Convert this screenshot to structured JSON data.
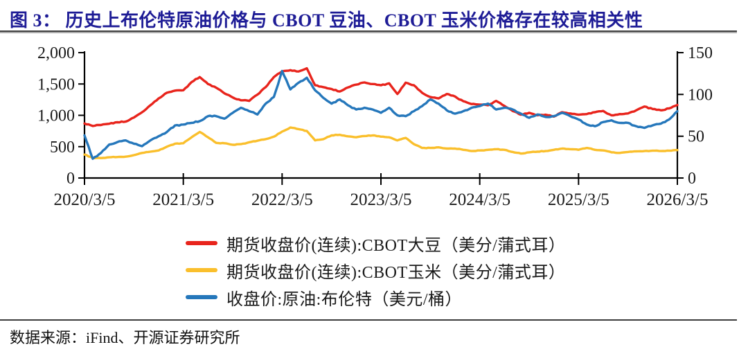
{
  "header": {
    "title": "图 3：  历史上布伦特原油价格与 CBOT 豆油、CBOT 玉米价格存在较高相关性"
  },
  "source": {
    "text": "数据来源：iFind、开源证券研究所"
  },
  "colors": {
    "title_navy": "#1E1C96",
    "soybean_red": "#E8241C",
    "corn_yellow": "#FABF2C",
    "brent_blue": "#2577BB",
    "axis_black": "#000000"
  },
  "chart_data": {
    "type": "line",
    "title": "",
    "grid": false,
    "legend_position": "bottom",
    "x_unit": "monthly observations from 2020/3 to 2026/3",
    "x_tick_labels": [
      "2020/3/5",
      "2021/3/5",
      "2022/3/5",
      "2023/3/5",
      "2024/3/5",
      "2025/3/5",
      "2026/3/5"
    ],
    "left_axis": {
      "ticks": [
        "2,000",
        "1,500",
        "1,000",
        "500",
        "0"
      ],
      "range": [
        0,
        2000
      ]
    },
    "right_axis": {
      "ticks": [
        "150",
        "100",
        "50",
        "0"
      ],
      "range": [
        0,
        150
      ]
    },
    "series": [
      {
        "name": "期货收盘价(连续):CBOT大豆（美分/蒲式耳）",
        "axis": "left",
        "color": "#E8241C",
        "jitter": 16,
        "values": [
          870,
          830,
          845,
          865,
          890,
          900,
          965,
          1050,
          1160,
          1270,
          1360,
          1395,
          1400,
          1530,
          1610,
          1500,
          1440,
          1350,
          1285,
          1240,
          1230,
          1330,
          1450,
          1610,
          1700,
          1720,
          1700,
          1750,
          1480,
          1450,
          1420,
          1380,
          1445,
          1490,
          1525,
          1500,
          1480,
          1510,
          1340,
          1520,
          1480,
          1360,
          1292,
          1270,
          1340,
          1300,
          1225,
          1180,
          1170,
          1160,
          1230,
          1150,
          1070,
          1010,
          1040,
          1000,
          1010,
          980,
          1050,
          1030,
          1010,
          1020,
          1050,
          1070,
          1000,
          1020,
          1030,
          1080,
          1140,
          1100,
          1080,
          1110,
          1165
        ]
      },
      {
        "name": "期货收盘价(连续):CBOT玉米（美分/蒲式耳）",
        "axis": "left",
        "color": "#FABF2C",
        "jitter": 10,
        "values": [
          375,
          320,
          318,
          330,
          335,
          340,
          365,
          400,
          420,
          440,
          500,
          548,
          555,
          650,
          735,
          650,
          560,
          555,
          530,
          540,
          570,
          595,
          620,
          660,
          740,
          805,
          780,
          750,
          600,
          620,
          680,
          690,
          665,
          650,
          670,
          680,
          660,
          650,
          600,
          640,
          540,
          480,
          480,
          490,
          470,
          470,
          450,
          430,
          440,
          450,
          460,
          450,
          415,
          390,
          410,
          420,
          430,
          450,
          470,
          460,
          450,
          480,
          450,
          440,
          410,
          400,
          415,
          425,
          430,
          435,
          430,
          435,
          445
        ]
      },
      {
        "name": "收盘价:原油:布伦特（美元/桶）",
        "axis": "right",
        "color": "#2577BB",
        "jitter": 1.5,
        "values": [
          51,
          23,
          30,
          40,
          43,
          45,
          41,
          38,
          45,
          50,
          55,
          63,
          64,
          66,
          68,
          74,
          74,
          71,
          78,
          84,
          80,
          76,
          89,
          97,
          128,
          106,
          114,
          120,
          105,
          96,
          89,
          94,
          87,
          82,
          84,
          82,
          78,
          84,
          75,
          74,
          80,
          86,
          94,
          89,
          81,
          77,
          80,
          84,
          86,
          89,
          82,
          84,
          82,
          77,
          72,
          76,
          73,
          74,
          78,
          74,
          70,
          64,
          62,
          67,
          69,
          66,
          66,
          62,
          60,
          63,
          65,
          70,
          80
        ]
      }
    ]
  }
}
